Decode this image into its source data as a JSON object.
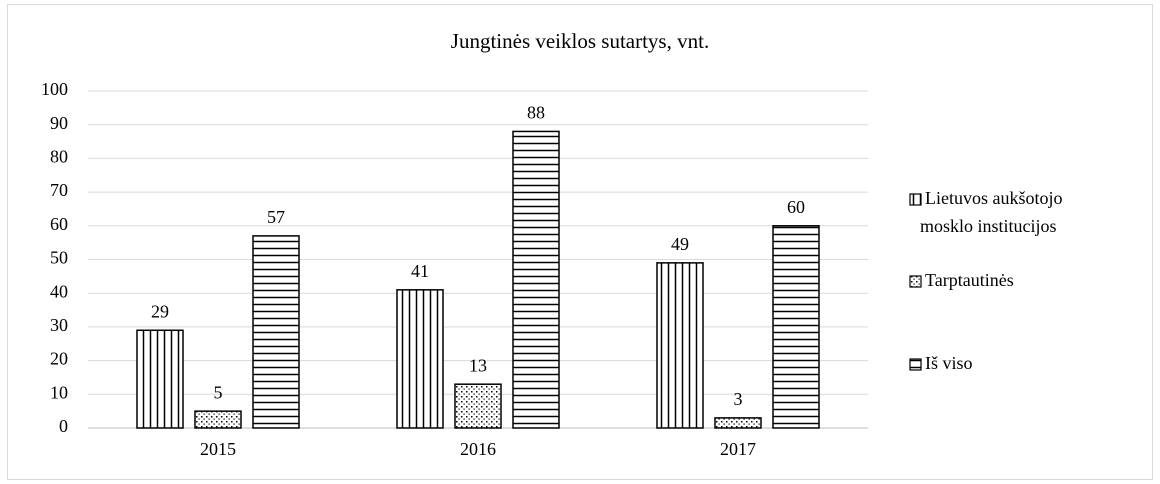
{
  "chart_data": {
    "type": "bar",
    "title": "Jungtinės veiklos sutartys, vnt.",
    "categories": [
      "2015",
      "2016",
      "2017"
    ],
    "series": [
      {
        "name": "Lietuvos aukšotojo mosklo institucijos",
        "color": "#000000",
        "pattern": "vertical",
        "values": [
          29,
          41,
          49
        ]
      },
      {
        "name": "Tarptautinės",
        "color": "#000000",
        "pattern": "dots",
        "values": [
          5,
          13,
          3
        ]
      },
      {
        "name": "Iš viso",
        "color": "#000000",
        "pattern": "horizontal",
        "values": [
          57,
          88,
          60
        ]
      }
    ],
    "ylim": [
      0,
      100
    ],
    "yticks": [
      0,
      10,
      20,
      30,
      40,
      50,
      60,
      70,
      80,
      90,
      100
    ],
    "grid": true,
    "legend": "right"
  }
}
